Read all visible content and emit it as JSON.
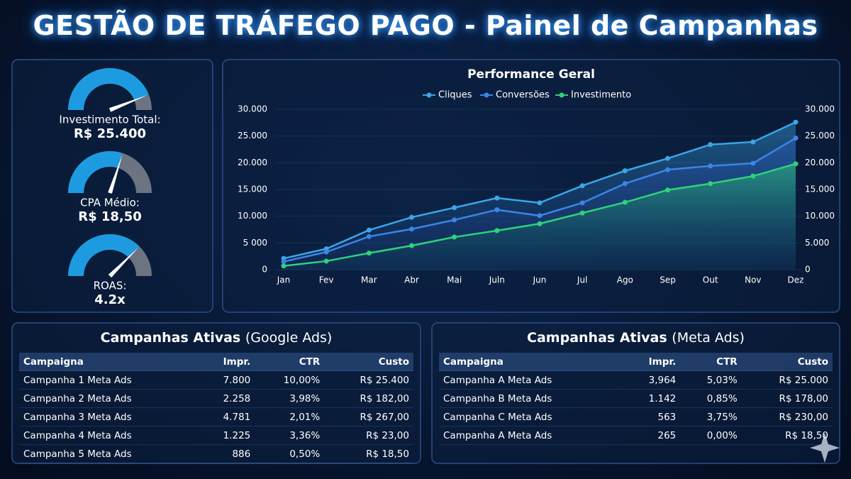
{
  "header": {
    "title": "GESTÃO DE TRÁFEGO PAGO - Painel de Campanhas"
  },
  "gauges": [
    {
      "label": "Investimento Total:",
      "value": "R$ 25.400"
    },
    {
      "label": "CPA Médio:",
      "value": "R$ 18,50"
    },
    {
      "label": "ROAS:",
      "value": "4.2x"
    }
  ],
  "chart_data": {
    "type": "line",
    "title": "Performance Geral",
    "categories": [
      "Jan",
      "Fev",
      "Mar",
      "Abr",
      "Mai",
      "Juln",
      "Jun",
      "Jul",
      "Ago",
      "Sep",
      "Out",
      "Nov",
      "Dez"
    ],
    "series": [
      {
        "name": "Cliques",
        "color": "#3aa6e8",
        "values": [
          2100,
          3900,
          7400,
          9800,
          11600,
          13400,
          12500,
          15700,
          18500,
          20800,
          23400,
          23900,
          27600
        ]
      },
      {
        "name": "Conversões",
        "color": "#3d84e6",
        "values": [
          1500,
          3300,
          6200,
          7600,
          9300,
          11200,
          10100,
          12500,
          16100,
          18700,
          19400,
          19900,
          24600
        ]
      },
      {
        "name": "Investimento",
        "color": "#2fd27a",
        "values": [
          700,
          1600,
          3100,
          4500,
          6100,
          7300,
          8600,
          10600,
          12600,
          14900,
          16100,
          17500,
          19800
        ]
      }
    ],
    "ylim": [
      0,
      30000
    ],
    "yticks": [
      0,
      {
        "value": 5000,
        "label": "5 000"
      },
      {
        "value": 10000,
        "label": "10.000"
      },
      {
        "value": 15000,
        "label": "15.000"
      },
      {
        "value": 20000,
        "label": "20.000"
      },
      {
        "value": 25000,
        "label": "25.000"
      },
      {
        "value": 30000,
        "label": "30.000"
      }
    ],
    "y2lim": [
      0,
      30000
    ],
    "y2ticks": [
      0,
      {
        "value": 5000,
        "label": "5.000"
      },
      {
        "value": 10000,
        "label": "10.000"
      },
      {
        "value": 15000,
        "label": "15.000"
      },
      {
        "value": 20000,
        "label": "20.000"
      },
      {
        "value": 25000,
        "label": "25.000"
      },
      {
        "value": 30000,
        "label": "30.000"
      }
    ],
    "legend": "top"
  },
  "tables": [
    {
      "title": "Campanhas Ativas",
      "subtitle": "(Google Ads)",
      "header": [
        "Campaigna",
        "Impr.",
        "CTR",
        "Custo"
      ],
      "rows": [
        [
          "Campanha 1 Meta Ads",
          "7.800",
          "10,00%",
          "R$ 25.400"
        ],
        [
          "Campanha 2 Meta Ads",
          "2.258",
          "3,98%",
          "R$ 182,00"
        ],
        [
          "Campanha 3 Meta Ads",
          "4.781",
          "2,01%",
          "R$ 267,00"
        ],
        [
          "Campanha 4 Meta Ads",
          "1.225",
          "3,36%",
          "R$ 23,00"
        ],
        [
          "Campanha 5 Meta Ads",
          "886",
          "0,50%",
          "R$ 18,50"
        ]
      ]
    },
    {
      "title": "Campanhas Ativas",
      "subtitle": "(Meta Ads)",
      "header": [
        "Campaigna",
        "Impr.",
        "CTR",
        "Custo"
      ],
      "rows": [
        [
          "Campanha A Meta Ads",
          "3,964",
          "5,03%",
          "R$ 25.000"
        ],
        [
          "Campanha B Meta Ads",
          "1.142",
          "0,85%",
          "R$ 178,00"
        ],
        [
          "Campanha C Meta Ads",
          "563",
          "3,75%",
          "R$ 230,00"
        ],
        [
          "Campanha A Meta Ads",
          "265",
          "0,00%",
          "R$ 18,50"
        ]
      ]
    }
  ]
}
